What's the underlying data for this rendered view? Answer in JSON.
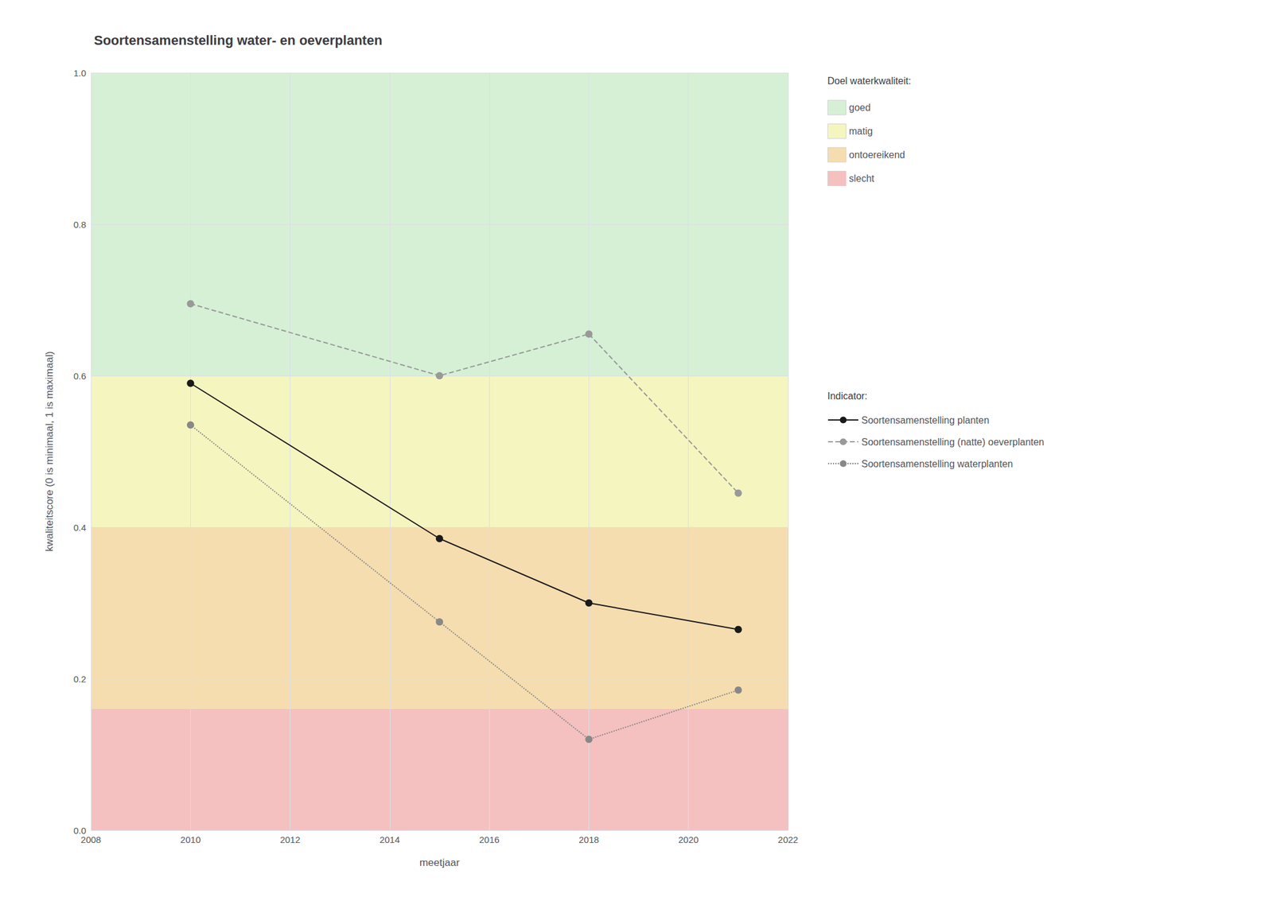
{
  "chart_data": {
    "type": "line",
    "title": "Soortensamenstelling water- en oeverplanten",
    "xlabel": "meetjaar",
    "ylabel": "kwaliteitscore (0 is minimaal, 1 is maximaal)",
    "xlim": [
      2008,
      2022
    ],
    "ylim": [
      0.0,
      1.0
    ],
    "xticks": [
      2008,
      2010,
      2012,
      2014,
      2016,
      2018,
      2020,
      2022
    ],
    "yticks": [
      {
        "value": 0,
        "label": "0.0"
      },
      0.2,
      0.4,
      0.6,
      0.8,
      {
        "value": 1,
        "label": "1.0"
      }
    ],
    "grid": true,
    "legend": "right",
    "bands_title": "Doel waterkwaliteit:",
    "bands": [
      {
        "name": "goed",
        "from": 0.6,
        "to": 1.0,
        "color": "#d6f0d6"
      },
      {
        "name": "matig",
        "from": 0.4,
        "to": 0.6,
        "color": "#f5f5c0"
      },
      {
        "name": "ontoereikend",
        "from": 0.16,
        "to": 0.4,
        "color": "#f5ddb0"
      },
      {
        "name": "slecht",
        "from": 0.0,
        "to": 0.16,
        "color": "#f5c0c0"
      }
    ],
    "series_title": "Indicator:",
    "x": [
      2010,
      2015,
      2018,
      2021
    ],
    "series": [
      {
        "name": "Soortensamenstelling planten",
        "color": "#1a1a1a",
        "line_style": "solid",
        "marker": "circle",
        "values": [
          0.59,
          0.385,
          0.3,
          0.265
        ]
      },
      {
        "name": "Soortensamenstelling (natte) oeverplanten",
        "color": "#999999",
        "line_style": "dashed",
        "marker": "circle",
        "values": [
          0.695,
          0.6,
          0.655,
          0.445
        ]
      },
      {
        "name": "Soortensamenstelling waterplanten",
        "color": "#888888",
        "line_style": "dotted",
        "marker": "circle",
        "values": [
          0.535,
          0.275,
          0.12,
          0.185
        ]
      }
    ]
  }
}
